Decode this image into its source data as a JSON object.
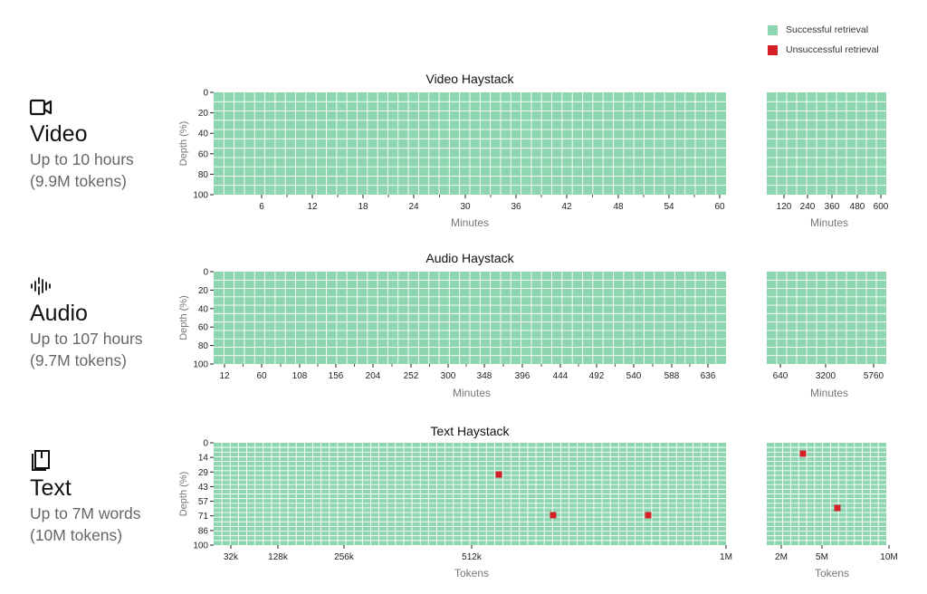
{
  "legend": {
    "success": {
      "label": "Successful retrieval",
      "color": "#8ed6b0"
    },
    "failure": {
      "label": "Unsuccessful retrieval",
      "color": "#d62027"
    }
  },
  "rows": [
    {
      "name": "Video",
      "line1": "Up to 10 hours",
      "line2": "(9.9M tokens)",
      "icon": "video-camera-icon"
    },
    {
      "name": "Audio",
      "line1": "Up to 107 hours",
      "line2": "(9.7M tokens)",
      "icon": "audio-waveform-icon"
    },
    {
      "name": "Text",
      "line1": "Up to 7M words",
      "line2": "(10M tokens)",
      "icon": "book-icon"
    }
  ],
  "chart_data": [
    {
      "type": "heatmap",
      "title": "Video Haystack",
      "ylabel": "Depth (%)",
      "yticks": [
        "0",
        "20",
        "40",
        "60",
        "80",
        "100"
      ],
      "main": {
        "xlabel": "Minutes",
        "xlim": [
          0,
          60
        ],
        "xticks": [
          "6",
          "12",
          "18",
          "24",
          "30",
          "36",
          "42",
          "48",
          "54",
          "60"
        ],
        "cols": 50,
        "rows": 11
      },
      "extended": {
        "xlabel": "Minutes",
        "xticks": [
          "120",
          "240",
          "360",
          "480",
          "600"
        ],
        "cols": 12,
        "rows": 11
      },
      "failures": []
    },
    {
      "type": "heatmap",
      "title": "Audio Haystack",
      "ylabel": "Depth (%)",
      "yticks": [
        "0",
        "20",
        "40",
        "60",
        "80",
        "100"
      ],
      "main": {
        "xlabel": "Minutes",
        "xlim": [
          0,
          660
        ],
        "xticks": [
          "12",
          "60",
          "108",
          "156",
          "204",
          "252",
          "300",
          "348",
          "396",
          "444",
          "492",
          "540",
          "588",
          "636"
        ],
        "cols": 50,
        "rows": 11
      },
      "extended": {
        "xlabel": "Minutes",
        "xticks": [
          "640",
          "3200",
          "5760"
        ],
        "cols": 12,
        "rows": 11
      },
      "failures": []
    },
    {
      "type": "heatmap",
      "title": "Text Haystack",
      "ylabel": "Depth (%)",
      "yticks": [
        "0",
        "14",
        "29",
        "43",
        "57",
        "71",
        "86",
        "100"
      ],
      "main": {
        "xlabel": "Tokens",
        "xticks": [
          "32k",
          "128k",
          "256k",
          "512k",
          "1M"
        ],
        "cols": 62,
        "rows": 22
      },
      "extended": {
        "xlabel": "Tokens",
        "xticks": [
          "2M",
          "5M",
          "10M"
        ],
        "cols": 15,
        "rows": 22
      },
      "failures": [
        {
          "panel": "main",
          "x": "~600k",
          "depth": 29
        },
        {
          "panel": "main",
          "x": "~680k",
          "depth": 71
        },
        {
          "panel": "main",
          "x": "~880k",
          "depth": 71
        },
        {
          "panel": "extended",
          "x": "~3M",
          "depth": 11
        },
        {
          "panel": "extended",
          "x": "~5.5M",
          "depth": 64
        }
      ]
    }
  ]
}
